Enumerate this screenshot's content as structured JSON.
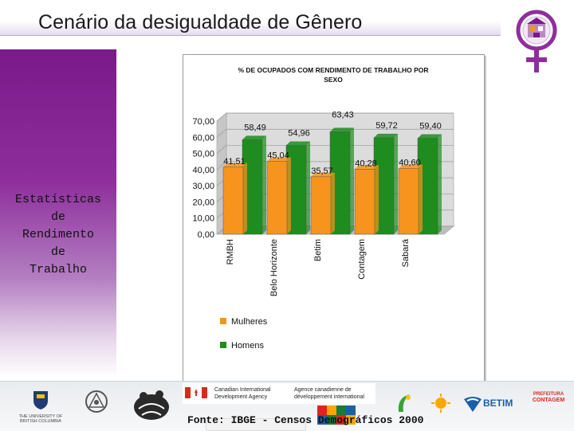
{
  "title": "Cenário da desigualdade de Gênero",
  "sidebar_lines": [
    "Estatísticas",
    "de",
    "Rendimento",
    "de",
    "Trabalho"
  ],
  "source_note": "Fonte: IBGE - Censos Demográficos 2000",
  "colors": {
    "accent_purple": "#8e2e9c",
    "mulheres": "#f7941d",
    "homens": "#1e8c1e"
  },
  "footer": {
    "ubc": [
      "THE UNIVERSITY OF",
      "BRITISH COLUMBIA"
    ],
    "cida_en": [
      "Canadian International",
      "Development Agency"
    ],
    "cida_fr": [
      "Agence canadienne de",
      "développement international"
    ],
    "betim": "BETIM",
    "contagem": [
      "PREFEITURA",
      "CONTAGEM"
    ]
  },
  "chart_data": {
    "type": "bar",
    "title": "% DE OCUPADOS COM RENDIMENTO DE TRABALHO POR SEXO",
    "categories": [
      "RMBH",
      "Belo Horizonte",
      "Betim",
      "Contagem",
      "Sabará"
    ],
    "series": [
      {
        "name": "Mulheres",
        "values": [
          41.51,
          45.04,
          35.57,
          40.28,
          40.6
        ],
        "labels": [
          "41,51",
          "45,04",
          "35,57",
          "40,28",
          "40,60"
        ]
      },
      {
        "name": "Homens",
        "values": [
          58.49,
          54.96,
          63.43,
          59.72,
          59.4
        ],
        "labels": [
          "58,49",
          "54,96",
          "63,43",
          "59,72",
          "59,40"
        ]
      }
    ],
    "y_ticks": [
      "0,00",
      "10,00",
      "20,00",
      "30,00",
      "40,00",
      "50,00",
      "60,00",
      "70,00"
    ],
    "y_tick_values": [
      0,
      10,
      20,
      30,
      40,
      50,
      60,
      70
    ],
    "ylim": [
      0,
      70
    ],
    "legend_placement": "bottom-left",
    "grid": true
  }
}
